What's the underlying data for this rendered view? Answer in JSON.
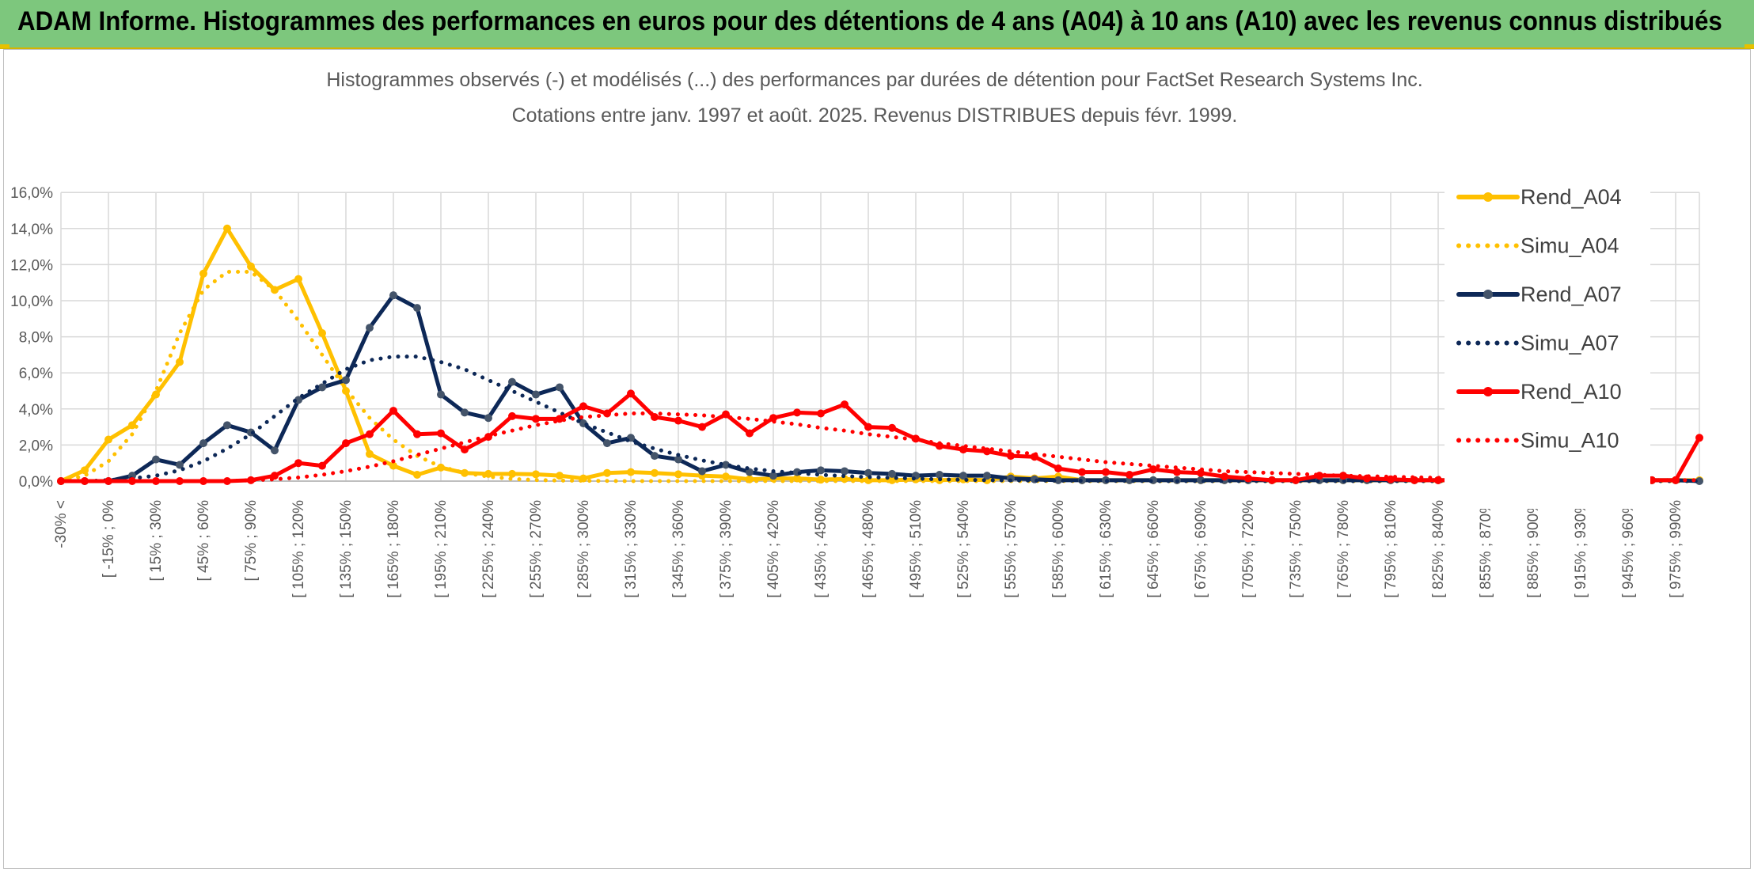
{
  "banner": {
    "title": "ADAM Informe. Histogrammes des performances en euros pour des détentions de 4 ans (A04) à 10 ans (A10) avec les revenus connus distribués"
  },
  "chart_data": {
    "type": "line",
    "title": "Histogrammes observés (-) et modélisés (...) des performances par durées de détention pour FactSet Research Systems Inc.",
    "subtitle": "Cotations entre janv. 1997 et août. 2025. Revenus DISTRIBUES depuis févr. 1999.",
    "xlabel": "",
    "ylabel": "",
    "ylim": [
      0,
      16
    ],
    "y_ticks": [
      "0,0%",
      "2,0%",
      "4,0%",
      "6,0%",
      "8,0%",
      "10,0%",
      "12,0%",
      "14,0%",
      "16,0%"
    ],
    "y_tick_values": [
      0,
      2,
      4,
      6,
      8,
      10,
      12,
      14,
      16
    ],
    "grid": true,
    "legend_position": "right",
    "x_tick_labels": [
      {
        "i": 0,
        "label": "-30% <"
      },
      {
        "i": 2,
        "label": "[ -15% ; 0%"
      },
      {
        "i": 4,
        "label": "[ 15% ; 30%"
      },
      {
        "i": 6,
        "label": "[ 45% ; 60%"
      },
      {
        "i": 8,
        "label": "[ 75% ; 90%"
      },
      {
        "i": 10,
        "label": "[ 105% ; 120%"
      },
      {
        "i": 12,
        "label": "[ 135% ; 150%"
      },
      {
        "i": 14,
        "label": "[ 165% ; 180%"
      },
      {
        "i": 16,
        "label": "[ 195% ; 210%"
      },
      {
        "i": 18,
        "label": "[ 225% ; 240%"
      },
      {
        "i": 20,
        "label": "[ 255% ; 270%"
      },
      {
        "i": 22,
        "label": "[ 285% ; 300%"
      },
      {
        "i": 24,
        "label": "[ 315% ; 330%"
      },
      {
        "i": 26,
        "label": "[ 345% ; 360%"
      },
      {
        "i": 28,
        "label": "[ 375% ; 390%"
      },
      {
        "i": 30,
        "label": "[ 405% ; 420%"
      },
      {
        "i": 32,
        "label": "[ 435% ; 450%"
      },
      {
        "i": 34,
        "label": "[ 465% ; 480%"
      },
      {
        "i": 36,
        "label": "[ 495% ; 510%"
      },
      {
        "i": 38,
        "label": "[ 525% ; 540%"
      },
      {
        "i": 40,
        "label": "[ 555% ; 570%"
      },
      {
        "i": 42,
        "label": "[ 585% ; 600%"
      },
      {
        "i": 44,
        "label": "[ 615% ; 630%"
      },
      {
        "i": 46,
        "label": "[ 645% ; 660%"
      },
      {
        "i": 48,
        "label": "[ 675% ; 690%"
      },
      {
        "i": 50,
        "label": "[ 705% ; 720%"
      },
      {
        "i": 52,
        "label": "[ 735% ; 750%"
      },
      {
        "i": 54,
        "label": "[ 765% ; 780%"
      },
      {
        "i": 56,
        "label": "[ 795% ; 810%"
      },
      {
        "i": 58,
        "label": "[ 825% ; 840%"
      },
      {
        "i": 60,
        "label": "[ 855% ; 870%"
      },
      {
        "i": 62,
        "label": "[ 885% ; 900%"
      },
      {
        "i": 64,
        "label": "[ 915% ; 930%"
      },
      {
        "i": 66,
        "label": "[ 945% ; 960%"
      },
      {
        "i": 68,
        "label": "[ 975% ; 990%"
      }
    ],
    "series": [
      {
        "name": "Rend_A04",
        "style": "solid",
        "color": "#ffc000",
        "marker": true,
        "values": [
          0.0,
          0.6,
          2.3,
          3.1,
          4.8,
          6.6,
          11.5,
          14.0,
          11.9,
          10.6,
          11.2,
          8.2,
          5.0,
          1.5,
          0.85,
          0.35,
          0.75,
          0.45,
          0.4,
          0.4,
          0.38,
          0.3,
          0.15,
          0.45,
          0.5,
          0.45,
          0.38,
          0.3,
          0.25,
          0.1,
          0.15,
          0.15,
          0.08,
          0.12,
          0.05,
          0.05,
          0.1,
          0.05,
          0.1,
          0.05,
          0.25,
          0.15,
          0.25,
          0.05,
          0.05,
          0.05,
          0.05,
          0.05,
          0.05,
          0.05,
          0.05,
          0.05,
          0.05,
          0.05,
          0.05,
          0.05,
          0.05,
          0.05,
          0.05,
          0.05,
          0.05,
          0.05,
          0.05,
          0.05,
          0.05,
          0.05,
          0.05,
          0.05,
          0.05,
          0.05
        ]
      },
      {
        "name": "Simu_A04",
        "style": "dotted",
        "color": "#ffc000",
        "marker": false,
        "values": [
          0.0,
          0.3,
          1.1,
          2.6,
          5.0,
          8.2,
          10.6,
          11.6,
          11.6,
          10.6,
          8.9,
          7.0,
          5.1,
          3.5,
          2.3,
          1.4,
          0.8,
          0.45,
          0.25,
          0.12,
          0.06,
          0.03,
          0.02,
          0.01,
          0.0,
          0.0,
          0.0,
          0.0,
          0.0,
          0.0,
          0.0,
          0.0,
          0.0,
          0.0,
          0.0,
          0.0,
          0.0,
          0.0,
          0.0,
          0.0,
          0.0,
          0.0,
          0.0,
          0.0,
          0.0,
          0.0,
          0.0,
          0.0,
          0.0,
          0.0,
          0.0,
          0.0,
          0.0,
          0.0,
          0.0,
          0.0,
          0.0,
          0.0,
          0.0,
          0.0,
          0.0,
          0.0,
          0.0,
          0.0,
          0.0,
          0.0,
          0.0,
          0.0,
          0.0,
          0.0
        ]
      },
      {
        "name": "Rend_A07",
        "style": "solid",
        "color": "#0d2857",
        "marker": true,
        "values": [
          0.0,
          0.0,
          0.0,
          0.3,
          1.2,
          0.9,
          2.1,
          3.1,
          2.7,
          1.7,
          4.5,
          5.2,
          5.6,
          8.5,
          10.3,
          9.6,
          4.8,
          3.8,
          3.5,
          5.5,
          4.8,
          5.2,
          3.2,
          2.1,
          2.4,
          1.4,
          1.2,
          0.55,
          0.9,
          0.5,
          0.3,
          0.5,
          0.6,
          0.55,
          0.45,
          0.4,
          0.3,
          0.35,
          0.3,
          0.3,
          0.15,
          0.1,
          0.05,
          0.05,
          0.05,
          0.05,
          0.05,
          0.05,
          0.05,
          0.05,
          0.05,
          0.05,
          0.05,
          0.05,
          0.05,
          0.05,
          0.05,
          0.05,
          0.05,
          0.05,
          0.05,
          0.05,
          0.05,
          0.05,
          0.05,
          0.05,
          0.05,
          0.05,
          0.05,
          0.0
        ]
      },
      {
        "name": "Simu_A07",
        "style": "dotted",
        "color": "#0d2857",
        "marker": false,
        "values": [
          0.0,
          0.0,
          0.05,
          0.15,
          0.3,
          0.6,
          1.1,
          1.8,
          2.6,
          3.6,
          4.6,
          5.4,
          6.2,
          6.7,
          6.9,
          6.9,
          6.6,
          6.2,
          5.6,
          5.0,
          4.4,
          3.8,
          3.2,
          2.7,
          2.2,
          1.8,
          1.45,
          1.15,
          0.9,
          0.7,
          0.55,
          0.45,
          0.35,
          0.28,
          0.22,
          0.18,
          0.14,
          0.1,
          0.07,
          0.05,
          0.04,
          0.03,
          0.02,
          0.02,
          0.01,
          0.01,
          0.0,
          0.0,
          0.0,
          0.0,
          0.0,
          0.0,
          0.0,
          0.0,
          0.0,
          0.0,
          0.0,
          0.0,
          0.0,
          0.0,
          0.0,
          0.0,
          0.0,
          0.0,
          0.0,
          0.0,
          0.0,
          0.0,
          0.0,
          0.0
        ]
      },
      {
        "name": "Rend_A10",
        "style": "solid",
        "color": "#ff0000",
        "marker": true,
        "values": [
          0.0,
          0.0,
          0.0,
          0.0,
          0.0,
          0.0,
          0.0,
          0.0,
          0.05,
          0.3,
          1.0,
          0.85,
          2.1,
          2.6,
          3.9,
          2.6,
          2.65,
          1.75,
          2.45,
          3.6,
          3.45,
          3.45,
          4.15,
          3.75,
          4.85,
          3.55,
          3.35,
          3.0,
          3.7,
          2.65,
          3.5,
          3.8,
          3.75,
          4.25,
          3.0,
          2.95,
          2.35,
          1.95,
          1.75,
          1.65,
          1.4,
          1.35,
          0.7,
          0.5,
          0.5,
          0.35,
          0.65,
          0.5,
          0.45,
          0.25,
          0.15,
          0.05,
          0.05,
          0.3,
          0.3,
          0.15,
          0.1,
          0.05,
          0.05,
          0.05,
          0.05,
          0.05,
          0.05,
          0.05,
          0.05,
          0.05,
          0.05,
          0.05,
          0.05,
          2.4
        ]
      },
      {
        "name": "Simu_A10",
        "style": "dotted",
        "color": "#ff0000",
        "marker": false,
        "values": [
          0.0,
          0.0,
          0.0,
          0.0,
          0.0,
          0.0,
          0.0,
          0.0,
          0.05,
          0.1,
          0.2,
          0.35,
          0.55,
          0.8,
          1.1,
          1.45,
          1.8,
          2.15,
          2.5,
          2.8,
          3.1,
          3.35,
          3.55,
          3.65,
          3.75,
          3.75,
          3.7,
          3.65,
          3.55,
          3.45,
          3.3,
          3.15,
          2.95,
          2.8,
          2.6,
          2.45,
          2.3,
          2.1,
          1.95,
          1.8,
          1.65,
          1.5,
          1.35,
          1.2,
          1.05,
          0.95,
          0.85,
          0.75,
          0.65,
          0.55,
          0.5,
          0.45,
          0.4,
          0.35,
          0.3,
          0.27,
          0.24,
          0.21,
          0.18,
          0.16,
          0.14,
          0.12,
          0.1,
          0.09,
          0.08,
          0.07,
          0.06,
          0.05,
          0.05,
          0.05
        ]
      }
    ]
  }
}
